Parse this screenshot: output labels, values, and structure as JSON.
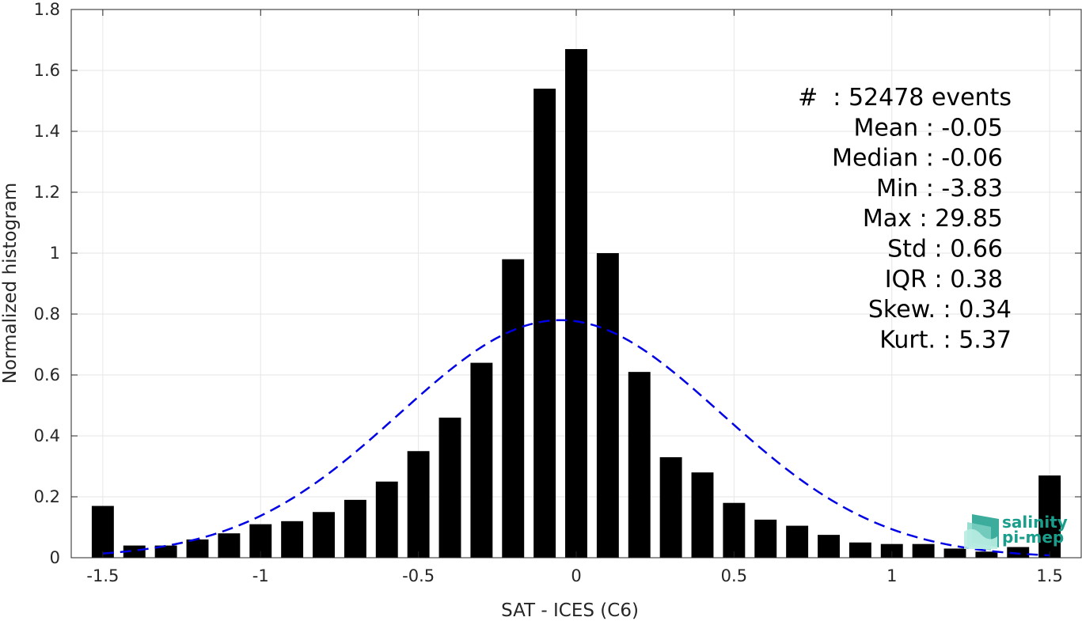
{
  "chart_data": {
    "type": "bar",
    "xlabel": "SAT - ICES (C6)",
    "ylabel": "Normalized histogram",
    "xlim": [
      -1.6,
      1.6
    ],
    "ylim": [
      0,
      1.8
    ],
    "grid": true,
    "x_ticks": [
      -1.5,
      -1,
      -0.5,
      0,
      0.5,
      1,
      1.5
    ],
    "x_tick_labels": [
      "-1.5",
      "-1",
      "-0.5",
      "0",
      "0.5",
      "1",
      "1.5"
    ],
    "y_ticks": [
      0,
      0.2,
      0.4,
      0.6,
      0.8,
      1,
      1.2,
      1.4,
      1.6,
      1.8
    ],
    "y_tick_labels": [
      "0",
      "0.2",
      "0.4",
      "0.6",
      "0.8",
      "1",
      "1.2",
      "1.4",
      "1.6",
      "1.8"
    ],
    "bar_width": 0.07,
    "bar_color": "#000000",
    "bars": {
      "x": [
        -1.5,
        -1.4,
        -1.3,
        -1.2,
        -1.1,
        -1.0,
        -0.9,
        -0.8,
        -0.7,
        -0.6,
        -0.5,
        -0.4,
        -0.3,
        -0.2,
        -0.1,
        0.0,
        0.1,
        0.2,
        0.3,
        0.4,
        0.5,
        0.6,
        0.7,
        0.8,
        0.9,
        1.0,
        1.1,
        1.2,
        1.3,
        1.4,
        1.5
      ],
      "values": [
        0.17,
        0.04,
        0.04,
        0.06,
        0.08,
        0.11,
        0.12,
        0.15,
        0.19,
        0.25,
        0.35,
        0.46,
        0.64,
        0.98,
        1.54,
        1.67,
        1.0,
        0.61,
        0.33,
        0.28,
        0.18,
        0.125,
        0.105,
        0.075,
        0.05,
        0.045,
        0.045,
        0.03,
        0.02,
        0.035,
        0.27
      ]
    },
    "fit_curve": {
      "style": "dashed",
      "color": "#0000e6",
      "mean": -0.05,
      "peak": 0.78,
      "sigma": 0.51,
      "x_range": [
        -1.5,
        1.5
      ]
    },
    "stats": [
      "#  : 52478 events",
      "Mean : -0.05",
      "Median : -0.06",
      "Min : -3.83",
      "Max : 29.85",
      "Std : 0.66",
      "IQR : 0.38",
      "Skew. : 0.34",
      "Kurt. : 5.37"
    ]
  },
  "logo": {
    "line1": "salinity",
    "line2": "pi-mep",
    "color": "#1a9e8c"
  }
}
